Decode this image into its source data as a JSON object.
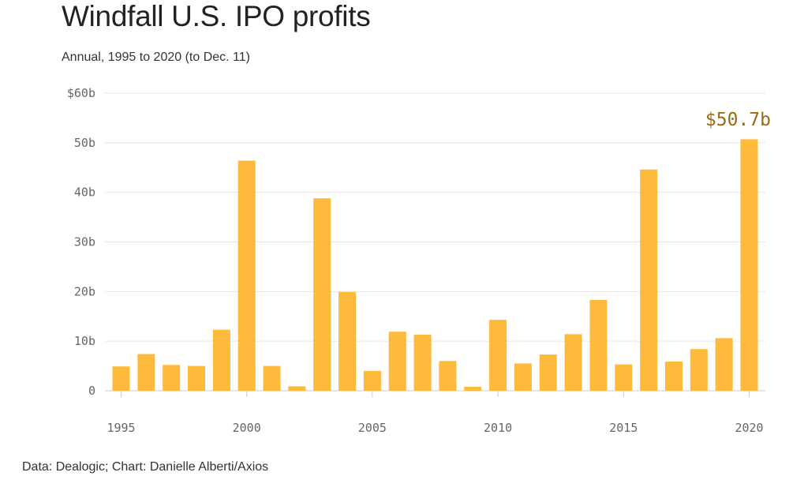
{
  "title": "Windfall U.S. IPO profits",
  "subtitle": "Annual, 1995 to 2020 (to Dec. 11)",
  "source": "Data: Dealogic; Chart: Danielle Alberti/Axios",
  "colors": {
    "bar": "#FDBA3B",
    "highlight_label": "#9A6A12",
    "grid": "#E6E6E6",
    "axis": "#CCCCCC"
  },
  "chart_data": {
    "type": "bar",
    "unit": "billion USD",
    "x": [
      1995,
      1996,
      1997,
      1998,
      1999,
      2000,
      2001,
      2002,
      2003,
      2004,
      2005,
      2006,
      2007,
      2008,
      2009,
      2010,
      2011,
      2012,
      2013,
      2014,
      2015,
      2016,
      2017,
      2018,
      2019,
      2020
    ],
    "values": [
      4.9,
      7.4,
      5.2,
      5.0,
      12.3,
      46.4,
      5.0,
      0.9,
      38.8,
      19.9,
      4.0,
      11.9,
      11.3,
      6.0,
      0.8,
      14.3,
      5.5,
      7.3,
      11.4,
      18.3,
      5.3,
      44.6,
      5.9,
      8.4,
      10.6,
      50.7
    ],
    "ylim": [
      0,
      60
    ],
    "yticks": [
      0,
      10,
      20,
      30,
      40,
      50,
      60
    ],
    "ytick_labels": [
      "0",
      "10b",
      "20b",
      "30b",
      "40b",
      "50b",
      "$60b"
    ],
    "xticks": [
      1995,
      2000,
      2005,
      2010,
      2015,
      2020
    ],
    "xtick_labels": [
      "1995",
      "2000",
      "2005",
      "2010",
      "2015",
      "2020"
    ],
    "annotation": {
      "x": 2020,
      "text": "$50.7b"
    },
    "grid": true
  }
}
